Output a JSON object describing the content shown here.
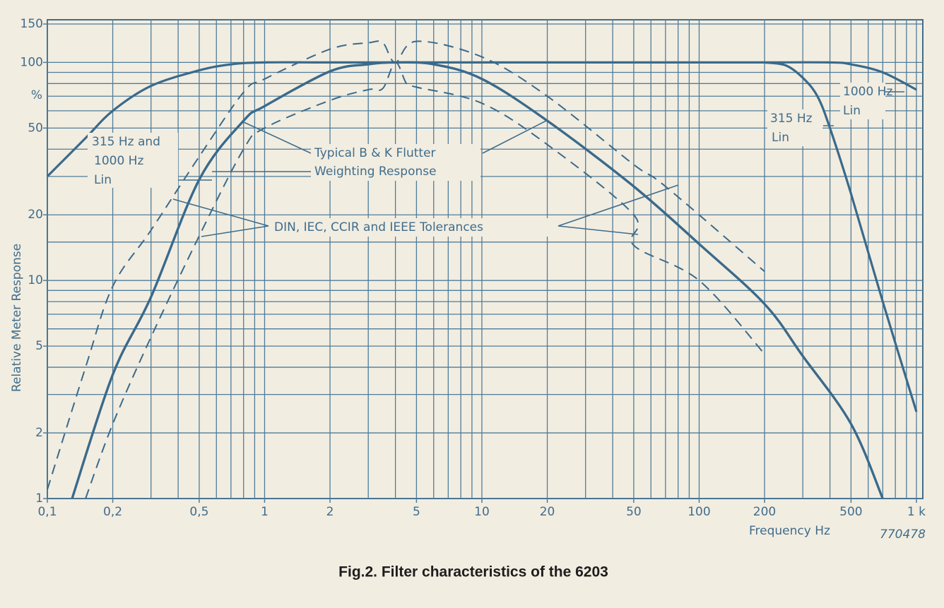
{
  "chart_data": {
    "type": "line",
    "title": "Fig.2. Filter characteristics of the 6203",
    "xlabel": "Frequency Hz",
    "ylabel": "Relative Meter Response",
    "y_unit": "%",
    "figure_id": "770478",
    "xscale": "log",
    "yscale": "log",
    "xlim": [
      0.1,
      1070
    ],
    "ylim": [
      1,
      150
    ],
    "xticks": [
      {
        "value": 0.1,
        "label": "0,1"
      },
      {
        "value": 0.2,
        "label": "0,2"
      },
      {
        "value": 0.5,
        "label": "0,5"
      },
      1,
      2,
      5,
      10,
      20,
      50,
      100,
      200,
      500,
      {
        "value": 1000,
        "label": "1 k"
      }
    ],
    "yticks": [
      1,
      2,
      5,
      10,
      20,
      50,
      100,
      150
    ],
    "xgrid": [
      0.1,
      0.2,
      0.3,
      0.4,
      0.5,
      0.6,
      0.7,
      0.8,
      0.9,
      1,
      2,
      3,
      4,
      5,
      6,
      7,
      8,
      9,
      10,
      20,
      30,
      40,
      50,
      60,
      70,
      80,
      90,
      100,
      200,
      300,
      400,
      500,
      600,
      700,
      800,
      900,
      1000
    ],
    "ygrid": [
      1,
      2,
      3,
      4,
      5,
      6,
      7,
      8,
      9,
      10,
      15,
      20,
      30,
      40,
      50,
      60,
      70,
      80,
      90,
      100,
      150
    ],
    "grid": true,
    "grid_color": "#4f7d99",
    "annotations": [
      [
        "315 Hz and",
        "1000 Hz",
        "Lin"
      ],
      [
        "Typical B & K Flutter",
        "Weighting Response"
      ],
      [
        "DIN, IEC, CCIR and IEEE Tolerances"
      ],
      [
        "315 Hz",
        "Lin"
      ],
      [
        "1000 Hz",
        "Lin"
      ]
    ],
    "series": [
      {
        "color": "#3a6a8b",
        "dash": false,
        "width": 3.2,
        "x": [
          0.1,
          0.15,
          0.2,
          0.3,
          0.5,
          0.7,
          1,
          2,
          10,
          100,
          200
        ],
        "values": [
          30,
          45,
          60,
          78,
          92,
          98,
          100,
          100,
          100,
          100,
          100
        ]
      },
      {
        "color": "#3a6a8b",
        "dash": false,
        "width": 3.2,
        "x": [
          200,
          250,
          300,
          350,
          400,
          500,
          700,
          1000
        ],
        "values": [
          100,
          97,
          85,
          70,
          50,
          25,
          8,
          2.5
        ]
      },
      {
        "color": "#3a6a8b",
        "dash": false,
        "width": 3.2,
        "x": [
          200,
          400,
          500,
          700,
          1000
        ],
        "values": [
          100,
          100,
          98,
          90,
          75
        ]
      },
      {
        "color": "#3a6a8b",
        "dash": false,
        "width": 3.4,
        "x": [
          0.13,
          0.2,
          0.3,
          0.5,
          0.8,
          1,
          2,
          3,
          4,
          6,
          10,
          20,
          50,
          100,
          200,
          300,
          500,
          700
        ],
        "values": [
          1,
          3.7,
          8.4,
          29,
          54,
          63,
          91,
          98,
          100,
          98,
          84,
          54,
          27,
          14.7,
          7.8,
          4.5,
          2.2,
          1
        ]
      },
      {
        "color": "#3a6a8b",
        "dash": true,
        "width": 2,
        "x": [
          0.1,
          0.15,
          0.2,
          0.3,
          0.5,
          0.8,
          1,
          2,
          3,
          3.5,
          4,
          5,
          10,
          20,
          50,
          70,
          200
        ],
        "values": [
          1.1,
          4,
          9.4,
          17,
          37,
          73,
          84,
          115,
          123,
          123,
          100,
          125,
          106,
          70,
          34,
          27,
          11
        ]
      },
      {
        "color": "#3a6a8b",
        "dash": true,
        "width": 2,
        "x": [
          0.15,
          0.2,
          0.3,
          0.5,
          0.8,
          1,
          2,
          3,
          3.5,
          4,
          4.5,
          5,
          10,
          20,
          50,
          50,
          100,
          200
        ],
        "values": [
          1,
          2.2,
          5.5,
          16,
          40,
          50,
          67,
          75,
          76,
          100,
          80,
          77,
          65,
          42,
          20,
          14.5,
          10,
          4.6
        ]
      }
    ]
  }
}
